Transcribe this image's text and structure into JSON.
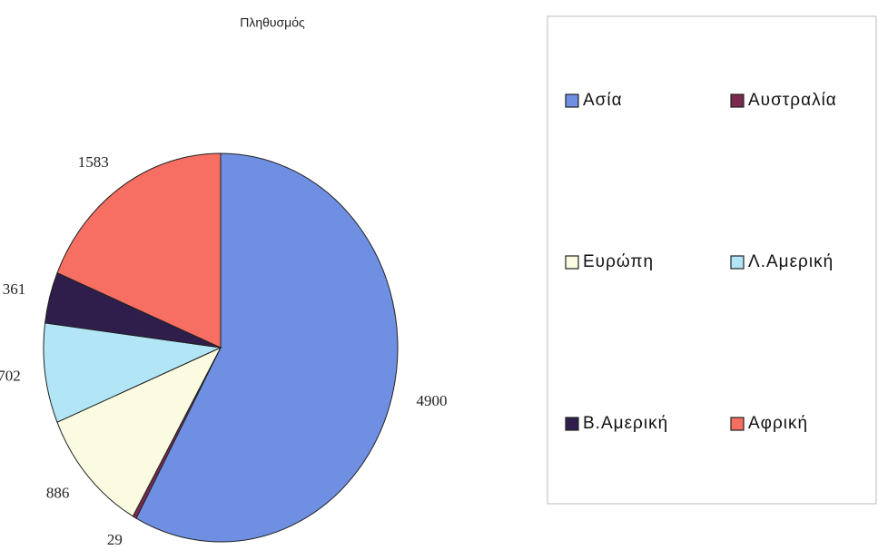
{
  "chart_data": {
    "type": "pie",
    "title": "Πληθυσμός",
    "categories": [
      "Ασία",
      "Αυστραλία",
      "Ευρώπη",
      "Λ.Αμερική",
      "Β.Αμερική",
      "Αφρική"
    ],
    "values": [
      4900,
      29,
      886,
      702,
      361,
      1583
    ],
    "colors": [
      "#6f8fe3",
      "#7a2a4e",
      "#fbfbe2",
      "#b2e6f6",
      "#2f1d4c",
      "#f66f62"
    ],
    "legend": "right"
  }
}
